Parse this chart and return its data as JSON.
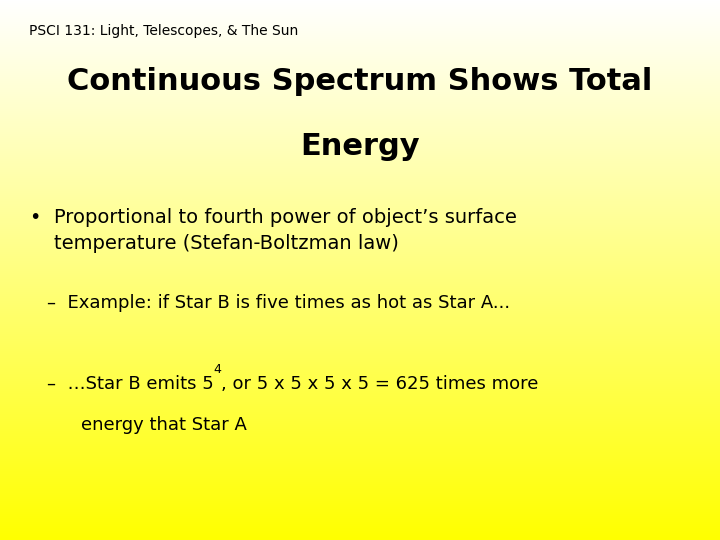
{
  "subtitle": "PSCI 131: Light, Telescopes, & The Sun",
  "title_line1": "Continuous Spectrum Shows Total",
  "title_line2": "Energy",
  "bullet_text": "Proportional to fourth power of object’s surface\ntemperature (Stefan-Boltzman law)",
  "sub1": "–  Example: if Star B is five times as hot as Star A...",
  "sub2_part1": "–  …Star B emits 5",
  "sub2_superscript": "4",
  "sub2_rest": ", or 5 x 5 x 5 x 5 = 625 times more",
  "sub2_line2": "      energy that Star A",
  "bg_color_top": "#ffff00",
  "bg_color_bottom": "#fffffA",
  "text_color": "#000000",
  "subtitle_fontsize": 10,
  "title_fontsize": 22,
  "bullet_fontsize": 14,
  "sub_fontsize": 13
}
